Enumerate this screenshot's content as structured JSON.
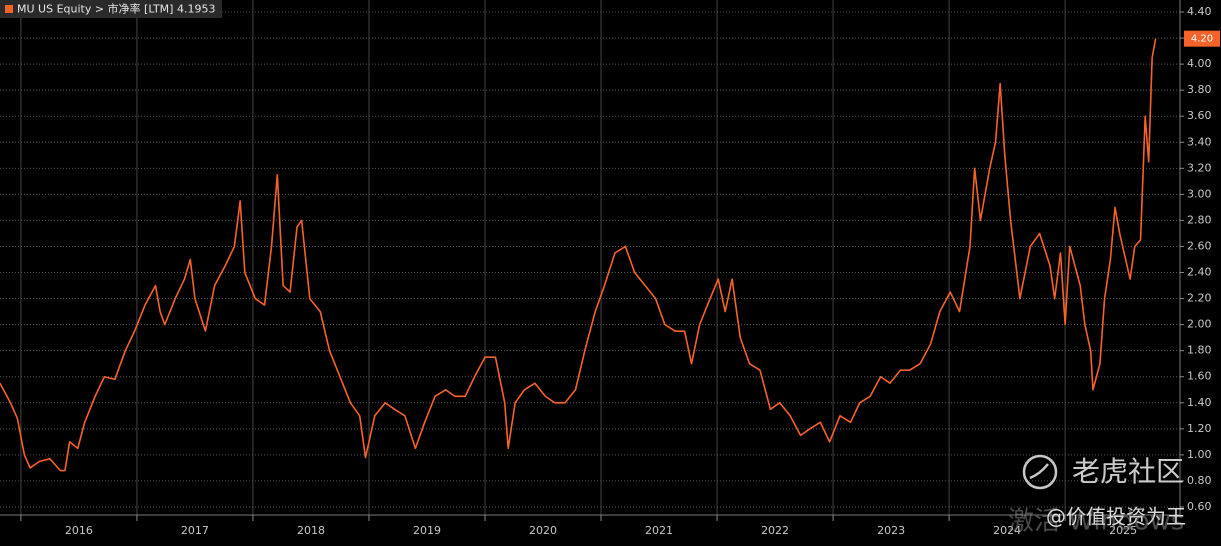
{
  "chart_data": {
    "type": "line",
    "series": [
      {
        "name": "MU US Equity > 市净率 [LTM]",
        "color": "#f4632a",
        "x": [
          2015.82,
          2015.91,
          2015.97,
          2016.03,
          2016.08,
          2016.16,
          2016.25,
          2016.34,
          2016.38,
          2016.42,
          2016.49,
          2016.55,
          2016.64,
          2016.72,
          2016.81,
          2016.9,
          2016.98,
          2017.07,
          2017.16,
          2017.2,
          2017.24,
          2017.33,
          2017.41,
          2017.46,
          2017.5,
          2017.59,
          2017.67,
          2017.76,
          2017.84,
          2017.89,
          2017.93,
          2018.02,
          2018.1,
          2018.16,
          2018.21,
          2018.26,
          2018.32,
          2018.38,
          2018.42,
          2018.49,
          2018.58,
          2018.66,
          2018.75,
          2018.84,
          2018.92,
          2018.97,
          2019.05,
          2019.14,
          2019.22,
          2019.31,
          2019.4,
          2019.48,
          2019.57,
          2019.66,
          2019.74,
          2019.83,
          2019.91,
          2020.0,
          2020.09,
          2020.17,
          2020.2,
          2020.26,
          2020.34,
          2020.43,
          2020.52,
          2020.6,
          2020.69,
          2020.78,
          2020.86,
          2020.95,
          2021.03,
          2021.12,
          2021.21,
          2021.29,
          2021.38,
          2021.47,
          2021.55,
          2021.64,
          2021.72,
          2021.78,
          2021.85,
          2021.94,
          2022.01,
          2022.07,
          2022.13,
          2022.2,
          2022.28,
          2022.37,
          2022.46,
          2022.54,
          2022.63,
          2022.72,
          2022.8,
          2022.89,
          2022.97,
          2023.06,
          2023.15,
          2023.23,
          2023.32,
          2023.41,
          2023.49,
          2023.58,
          2023.66,
          2023.75,
          2023.84,
          2023.92,
          2024.01,
          2024.09,
          2024.18,
          2024.22,
          2024.27,
          2024.35,
          2024.4,
          2024.44,
          2024.48,
          2024.53,
          2024.57,
          2024.61,
          2024.7,
          2024.78,
          2024.87,
          2024.91,
          2024.96,
          2025.0,
          2025.04,
          2025.13,
          2025.17,
          2025.22,
          2025.24,
          2025.3,
          2025.34,
          2025.39,
          2025.43,
          2025.47,
          2025.56,
          2025.6,
          2025.65,
          2025.69,
          2025.72,
          2025.75,
          2025.78
        ],
        "values": [
          1.55,
          1.4,
          1.28,
          1.0,
          0.9,
          0.95,
          0.97,
          0.88,
          0.88,
          1.1,
          1.05,
          1.25,
          1.45,
          1.6,
          1.58,
          1.8,
          1.95,
          2.15,
          2.3,
          2.1,
          2.0,
          2.2,
          2.35,
          2.5,
          2.2,
          1.95,
          2.3,
          2.45,
          2.6,
          2.95,
          2.4,
          2.2,
          2.15,
          2.6,
          3.15,
          2.3,
          2.25,
          2.75,
          2.8,
          2.2,
          2.1,
          1.8,
          1.6,
          1.4,
          1.3,
          0.98,
          1.3,
          1.4,
          1.35,
          1.3,
          1.05,
          1.25,
          1.45,
          1.5,
          1.45,
          1.45,
          1.6,
          1.75,
          1.75,
          1.4,
          1.05,
          1.4,
          1.5,
          1.55,
          1.45,
          1.4,
          1.4,
          1.5,
          1.8,
          2.1,
          2.3,
          2.55,
          2.6,
          2.4,
          2.3,
          2.2,
          2.0,
          1.95,
          1.95,
          1.7,
          2.0,
          2.2,
          2.35,
          2.1,
          2.35,
          1.9,
          1.7,
          1.65,
          1.35,
          1.4,
          1.3,
          1.15,
          1.2,
          1.25,
          1.1,
          1.3,
          1.25,
          1.4,
          1.45,
          1.6,
          1.55,
          1.65,
          1.65,
          1.7,
          1.85,
          2.1,
          2.25,
          2.1,
          2.6,
          3.2,
          2.8,
          3.2,
          3.4,
          3.85,
          3.3,
          2.8,
          2.5,
          2.2,
          2.6,
          2.7,
          2.45,
          2.2,
          2.55,
          2.0,
          2.6,
          2.3,
          2.0,
          1.8,
          1.5,
          1.7,
          2.2,
          2.5,
          2.9,
          2.7,
          2.35,
          2.6,
          2.65,
          3.6,
          3.25,
          4.05,
          4.1953
        ]
      }
    ],
    "current_value": {
      "value": 4.1953,
      "label": "4.20"
    },
    "xlim": [
      2015.82,
      2025.99
    ],
    "xticks": [
      {
        "value": 2016.5,
        "label": "2016"
      },
      {
        "value": 2017.5,
        "label": "2017"
      },
      {
        "value": 2018.5,
        "label": "2018"
      },
      {
        "value": 2019.5,
        "label": "2019"
      },
      {
        "value": 2020.5,
        "label": "2020"
      },
      {
        "value": 2021.5,
        "label": "2021"
      },
      {
        "value": 2022.5,
        "label": "2022"
      },
      {
        "value": 2023.5,
        "label": "2023"
      },
      {
        "value": 2024.5,
        "label": "2024"
      },
      {
        "value": 2025.5,
        "label": "2025"
      }
    ],
    "ylim": [
      0.55,
      4.45
    ],
    "yticks": [
      {
        "value": 0.6,
        "label": "0.60"
      },
      {
        "value": 0.8,
        "label": "0.80"
      },
      {
        "value": 1.0,
        "label": "1.00"
      },
      {
        "value": 1.2,
        "label": "1.20"
      },
      {
        "value": 1.4,
        "label": "1.40"
      },
      {
        "value": 1.6,
        "label": "1.60"
      },
      {
        "value": 1.8,
        "label": "1.80"
      },
      {
        "value": 2.0,
        "label": "2.00"
      },
      {
        "value": 2.2,
        "label": "2.20"
      },
      {
        "value": 2.4,
        "label": "2.40"
      },
      {
        "value": 2.6,
        "label": "2.60"
      },
      {
        "value": 2.8,
        "label": "2.80"
      },
      {
        "value": 3.0,
        "label": "3.00"
      },
      {
        "value": 3.2,
        "label": "3.20"
      },
      {
        "value": 3.4,
        "label": "3.40"
      },
      {
        "value": 3.6,
        "label": "3.60"
      },
      {
        "value": 3.8,
        "label": "3.80"
      },
      {
        "value": 4.0,
        "label": "4.00"
      },
      {
        "value": 4.2,
        "label": "4.20"
      },
      {
        "value": 4.4,
        "label": "4.40"
      }
    ],
    "grid": true
  },
  "watermarks": {
    "brand": "老虎社区",
    "author": "@价值投资为王",
    "system": "激活 Windows"
  }
}
